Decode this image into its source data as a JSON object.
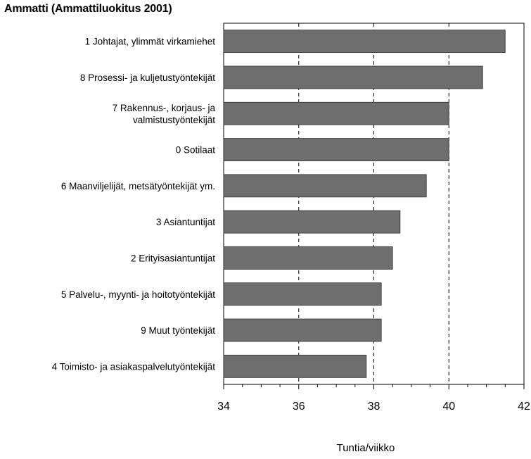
{
  "chart_data": {
    "type": "bar",
    "orientation": "horizontal",
    "title": "Ammatti (Ammattiluokitus 2001)",
    "categories": [
      [
        "1 Johtajat, ylimmät virkamiehet"
      ],
      [
        "8 Prosessi- ja kuljetustyöntekijät"
      ],
      [
        "7 Rakennus-, korjaus- ja",
        "valmistustyöntekijät"
      ],
      [
        "0 Sotilaat"
      ],
      [
        "6 Maanviljelijät, metsätyöntekijät ym."
      ],
      [
        "3 Asiantuntijat"
      ],
      [
        "2 Erityisasiantuntijat"
      ],
      [
        "5 Palvelu-, myynti- ja hoitotyöntekijät"
      ],
      [
        "9 Muut työntekijät"
      ],
      [
        "4 Toimisto- ja asiakaspalvelutyöntekijät"
      ]
    ],
    "values": [
      41.5,
      40.9,
      40.0,
      40.0,
      39.4,
      38.7,
      38.5,
      38.2,
      38.2,
      37.8
    ],
    "xlabel": "Tuntia/viikko",
    "xlim": [
      34,
      42
    ],
    "xticks": [
      34,
      36,
      38,
      40,
      42
    ],
    "grid": "vertical dashed at major ticks",
    "bar_color": "#6e6e6e"
  }
}
